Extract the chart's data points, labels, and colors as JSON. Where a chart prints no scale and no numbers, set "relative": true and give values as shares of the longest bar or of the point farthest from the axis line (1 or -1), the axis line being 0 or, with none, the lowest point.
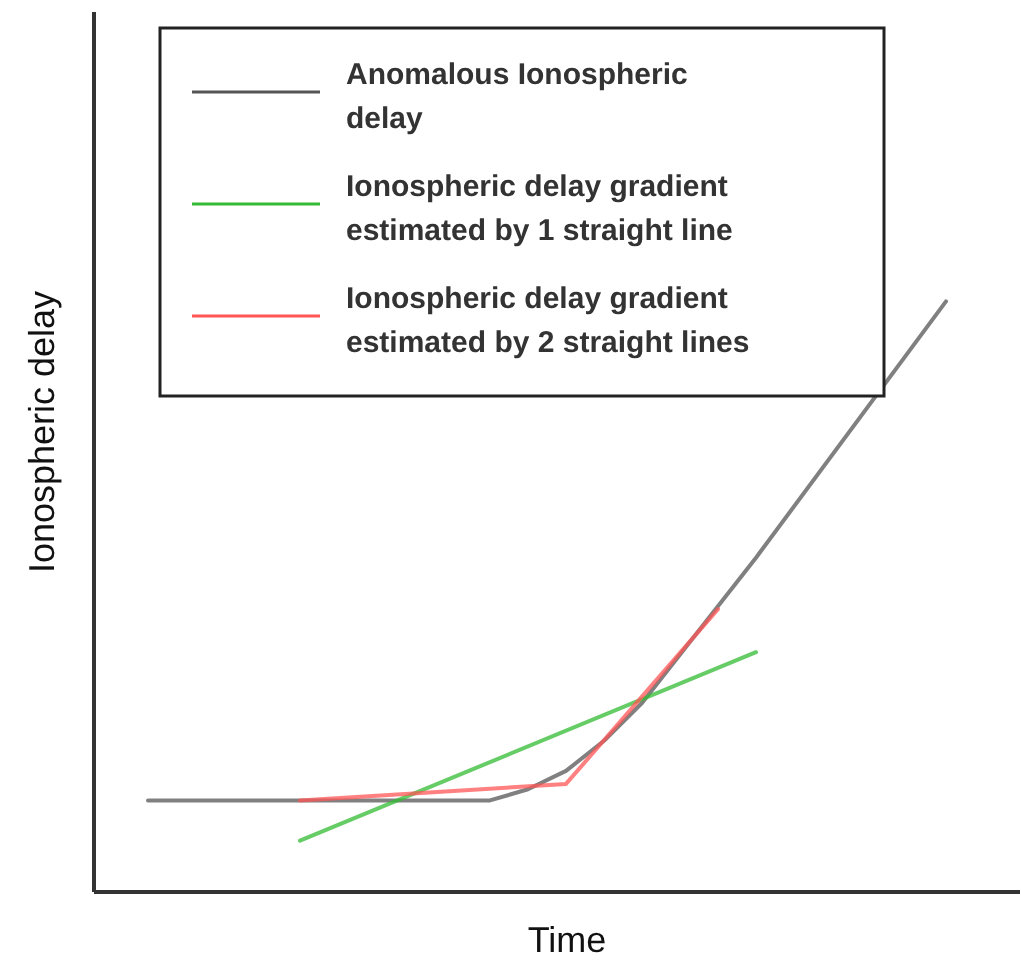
{
  "chart_data": {
    "type": "line",
    "xlabel": "Time",
    "ylabel": "Ionospheric delay",
    "relative": true,
    "legend": "top left",
    "line_style": "solid",
    "categories": [
      null,
      null,
      null,
      null,
      null,
      null,
      null,
      null,
      null,
      null,
      null,
      null,
      null,
      null,
      null,
      null,
      null,
      null,
      null,
      null,
      null,
      null
    ],
    "series": [
      {
        "name": "Anomalous Ionospheric delay",
        "color": "#555555",
        "values": [
          0.155,
          null,
          null,
          null,
          null,
          null,
          null,
          null,
          null,
          0.155,
          0.174,
          0.205,
          0.256,
          0.32,
          null,
          null,
          0.566,
          null,
          null,
          null,
          null,
          1
        ]
      },
      {
        "name": "Ionospheric delay gradient estimated by 1 straight line",
        "color": "#33bb33",
        "values": [
          null,
          null,
          null,
          null,
          0.087,
          null,
          null,
          null,
          null,
          null,
          null,
          null,
          null,
          null,
          null,
          null,
          0.406,
          null,
          null,
          null,
          null,
          null
        ]
      },
      {
        "name": "Ionospheric delay gradient estimated by 2 straight lines",
        "color": "#ff5555",
        "values": [
          null,
          null,
          null,
          null,
          0.155,
          null,
          null,
          null,
          null,
          null,
          null,
          0.183,
          null,
          null,
          null,
          0.479,
          null,
          null,
          null,
          null,
          null,
          null
        ]
      }
    ]
  }
}
